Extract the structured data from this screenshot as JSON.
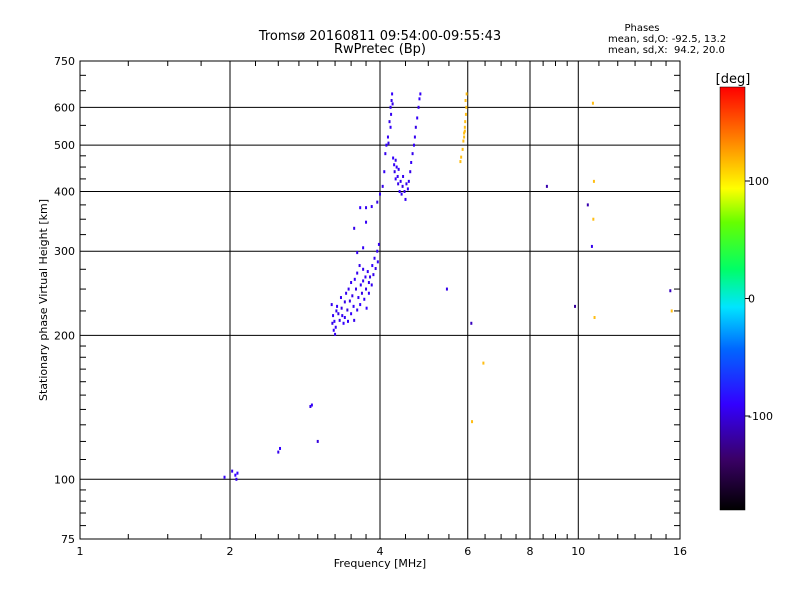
{
  "chart_data": {
    "type": "scatter",
    "title": "Tromsø 20160811 09:54:00-09:55:43",
    "subtitle": "RwPretec (Bp)",
    "xlabel": "Frequency [MHz]",
    "ylabel": "Stationary phase Virtual Height [km]",
    "x_scale": "log",
    "y_scale": "log",
    "xlim": [
      1,
      16
    ],
    "ylim": [
      75,
      750
    ],
    "x_ticks": [
      {
        "value": 1,
        "label": "1"
      },
      {
        "value": 2,
        "label": "2"
      },
      {
        "value": 4,
        "label": "4"
      },
      {
        "value": 6,
        "label": "6"
      },
      {
        "value": 8,
        "label": "8"
      },
      {
        "value": 10,
        "label": "10"
      },
      {
        "value": 16,
        "label": "16"
      }
    ],
    "y_ticks": [
      {
        "value": 75,
        "label": "75"
      },
      {
        "value": 100,
        "label": "100"
      },
      {
        "value": 200,
        "label": "200"
      },
      {
        "value": 300,
        "label": "300"
      },
      {
        "value": 400,
        "label": "400"
      },
      {
        "value": 500,
        "label": "500"
      },
      {
        "value": 600,
        "label": "600"
      },
      {
        "value": 750,
        "label": "750"
      }
    ],
    "grid": true,
    "phases": {
      "heading": "Phases",
      "line_o": "mean, sd,O: -92.5, 13.2",
      "line_x": "mean, sd,X:  94.2, 20.0"
    },
    "colorbar": {
      "label": "[deg]",
      "range": [
        -180,
        180
      ],
      "ticks": [
        {
          "value": 100,
          "label": "100"
        },
        {
          "value": 0,
          "label": "0"
        },
        {
          "value": -100,
          "label": "-100"
        }
      ]
    },
    "points": [
      [
        1.95,
        101,
        -92
      ],
      [
        2.02,
        104,
        -95
      ],
      [
        2.05,
        102,
        -90
      ],
      [
        2.06,
        100,
        -96
      ],
      [
        2.07,
        103,
        -88
      ],
      [
        2.5,
        114,
        -95
      ],
      [
        2.52,
        116,
        -90
      ],
      [
        2.9,
        142,
        -96
      ],
      [
        2.92,
        143,
        -92
      ],
      [
        3.0,
        120,
        -100
      ],
      [
        3.2,
        232,
        -95
      ],
      [
        3.22,
        220,
        -92
      ],
      [
        3.21,
        212,
        -98
      ],
      [
        3.23,
        205,
        -90
      ],
      [
        3.25,
        201,
        -95
      ],
      [
        3.24,
        214,
        -88
      ],
      [
        3.27,
        225,
        -96
      ],
      [
        3.26,
        208,
        -93
      ],
      [
        3.3,
        222,
        -97
      ],
      [
        3.28,
        230,
        -90
      ],
      [
        3.32,
        215,
        -95
      ],
      [
        3.34,
        240,
        -92
      ],
      [
        3.35,
        228,
        -98
      ],
      [
        3.36,
        220,
        -94
      ],
      [
        3.38,
        212,
        -90
      ],
      [
        3.4,
        235,
        -96
      ],
      [
        3.4,
        218,
        -92
      ],
      [
        3.42,
        245,
        -95
      ],
      [
        3.44,
        226,
        -99
      ],
      [
        3.45,
        214,
        -91
      ],
      [
        3.46,
        250,
        -94
      ],
      [
        3.48,
        236,
        -96
      ],
      [
        3.5,
        222,
        -90
      ],
      [
        3.5,
        258,
        -93
      ],
      [
        3.52,
        242,
        -97
      ],
      [
        3.54,
        230,
        -92
      ],
      [
        3.55,
        215,
        -95
      ],
      [
        3.56,
        262,
        -91
      ],
      [
        3.58,
        250,
        -98
      ],
      [
        3.6,
        226,
        -94
      ],
      [
        3.6,
        270,
        -95
      ],
      [
        3.62,
        240,
        -92
      ],
      [
        3.64,
        280,
        -96
      ],
      [
        3.65,
        232,
        -90
      ],
      [
        3.66,
        255,
        -93
      ],
      [
        3.68,
        245,
        -97
      ],
      [
        3.7,
        260,
        -92
      ],
      [
        3.7,
        275,
        -95
      ],
      [
        3.72,
        238,
        -91
      ],
      [
        3.74,
        265,
        -94
      ],
      [
        3.75,
        250,
        -96
      ],
      [
        3.76,
        228,
        -90
      ],
      [
        3.78,
        272,
        -93
      ],
      [
        3.8,
        258,
        -95
      ],
      [
        3.8,
        245,
        -92
      ],
      [
        3.82,
        265,
        -97
      ],
      [
        3.85,
        255,
        -94
      ],
      [
        3.86,
        280,
        -90
      ],
      [
        3.88,
        268,
        -95
      ],
      [
        3.9,
        290,
        -92
      ],
      [
        3.92,
        276,
        -96
      ],
      [
        3.95,
        300,
        -93
      ],
      [
        3.96,
        285,
        -91
      ],
      [
        3.98,
        310,
        -95
      ],
      [
        3.7,
        305,
        -92
      ],
      [
        3.6,
        298,
        -94
      ],
      [
        3.55,
        335,
        -96
      ],
      [
        3.75,
        345,
        -93
      ],
      [
        3.65,
        370,
        -90
      ],
      [
        3.75,
        370,
        -95
      ],
      [
        3.85,
        372,
        -92
      ],
      [
        3.95,
        380,
        -97
      ],
      [
        4.0,
        395,
        -94
      ],
      [
        4.05,
        410,
        -96
      ],
      [
        4.08,
        440,
        -92
      ],
      [
        4.1,
        480,
        -95
      ],
      [
        4.12,
        500,
        -90
      ],
      [
        4.15,
        520,
        -93
      ],
      [
        4.18,
        560,
        -96
      ],
      [
        4.2,
        600,
        -92
      ],
      [
        4.22,
        620,
        -95
      ],
      [
        4.23,
        640,
        -91
      ],
      [
        4.21,
        580,
        -94
      ],
      [
        4.24,
        610,
        -97
      ],
      [
        4.2,
        545,
        -92
      ],
      [
        4.16,
        505,
        -95
      ],
      [
        4.25,
        470,
        -90
      ],
      [
        4.27,
        455,
        -93
      ],
      [
        4.28,
        440,
        -96
      ],
      [
        4.3,
        425,
        -92
      ],
      [
        4.3,
        465,
        -95
      ],
      [
        4.32,
        450,
        -91
      ],
      [
        4.34,
        430,
        -94
      ],
      [
        4.35,
        415,
        -96
      ],
      [
        4.36,
        445,
        -93
      ],
      [
        4.38,
        400,
        -90
      ],
      [
        4.4,
        420,
        -95
      ],
      [
        4.42,
        395,
        -92
      ],
      [
        4.44,
        410,
        -97
      ],
      [
        4.45,
        430,
        -94
      ],
      [
        4.48,
        400,
        -96
      ],
      [
        4.5,
        385,
        -92
      ],
      [
        4.52,
        415,
        -95
      ],
      [
        4.55,
        405,
        -90
      ],
      [
        4.57,
        420,
        -93
      ],
      [
        4.6,
        440,
        -96
      ],
      [
        4.62,
        460,
        -92
      ],
      [
        4.65,
        480,
        -95
      ],
      [
        4.68,
        500,
        -91
      ],
      [
        4.7,
        520,
        -94
      ],
      [
        4.72,
        545,
        -97
      ],
      [
        4.75,
        570,
        -92
      ],
      [
        4.78,
        600,
        -95
      ],
      [
        4.8,
        625,
        -90
      ],
      [
        4.82,
        640,
        -93
      ],
      [
        5.45,
        250,
        -96
      ],
      [
        5.8,
        462,
        95
      ],
      [
        5.82,
        472,
        100
      ],
      [
        5.86,
        490,
        92
      ],
      [
        5.88,
        510,
        98
      ],
      [
        5.9,
        530,
        95
      ],
      [
        5.92,
        545,
        90
      ],
      [
        5.93,
        560,
        97
      ],
      [
        5.95,
        580,
        94
      ],
      [
        5.96,
        600,
        92
      ],
      [
        5.94,
        620,
        96
      ],
      [
        5.97,
        640,
        93
      ],
      [
        5.9,
        520,
        99
      ],
      [
        5.92,
        535,
        95
      ],
      [
        6.1,
        212,
        -110
      ],
      [
        6.12,
        132,
        95
      ],
      [
        6.45,
        175,
        90
      ],
      [
        8.65,
        410,
        -115
      ],
      [
        9.85,
        230,
        -120
      ],
      [
        10.45,
        375,
        -115
      ],
      [
        10.65,
        307,
        -95
      ],
      [
        10.7,
        612,
        98
      ],
      [
        10.75,
        420,
        92
      ],
      [
        10.72,
        350,
        96
      ],
      [
        10.78,
        218,
        97
      ],
      [
        15.3,
        248,
        -110
      ],
      [
        15.4,
        225,
        95
      ]
    ]
  }
}
